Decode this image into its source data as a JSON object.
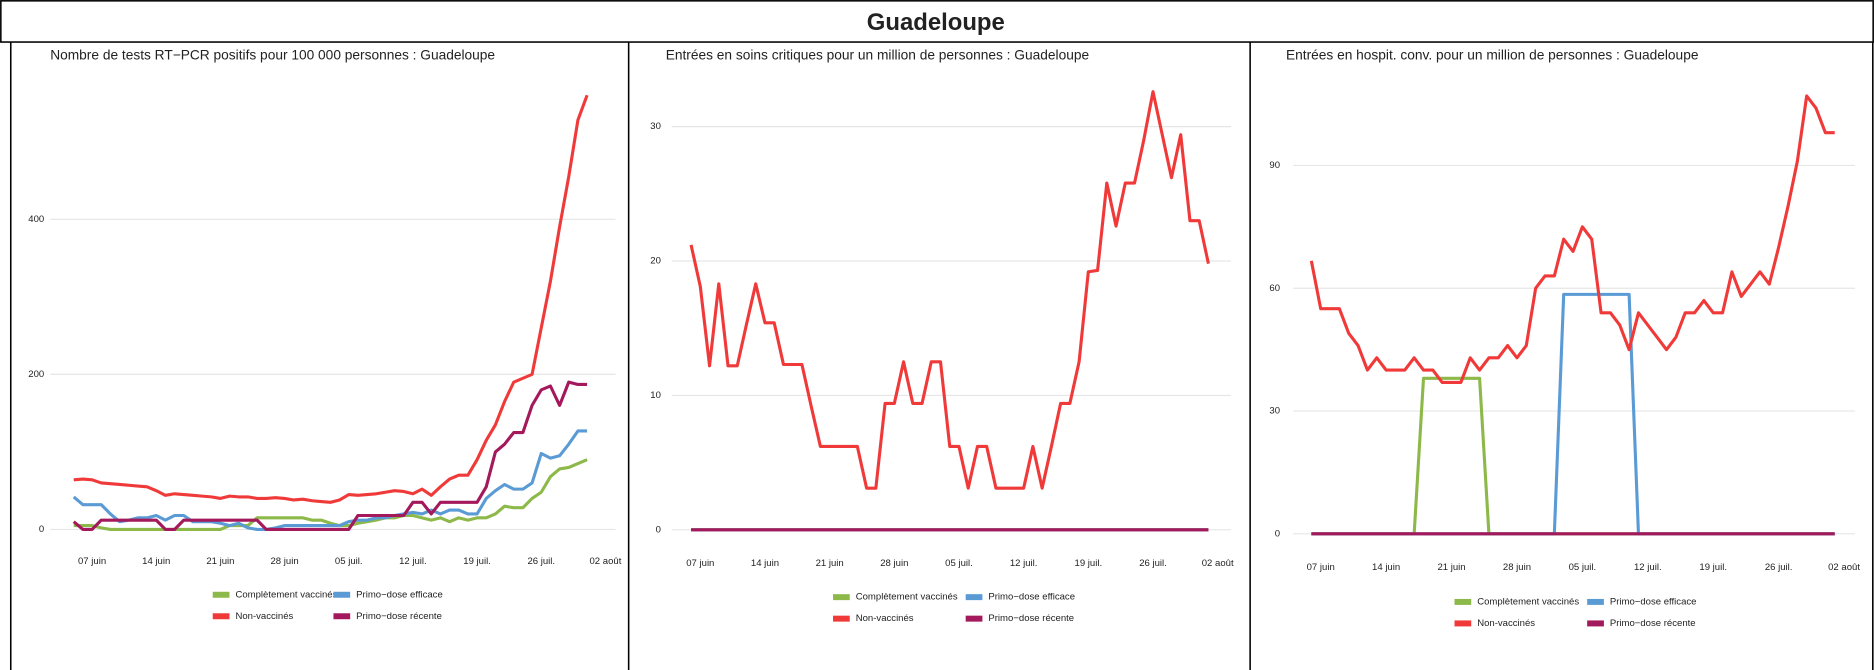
{
  "header": {
    "title": "Guadeloupe"
  },
  "chart_data": [
    {
      "type": "line",
      "title": "Nombre de tests RT−PCR positifs pour 100 000 personnes : Guadeloupe",
      "categories": [
        null,
        null,
        "07 juin",
        null,
        null,
        null,
        null,
        null,
        null,
        "14 juin",
        null,
        null,
        null,
        null,
        null,
        null,
        "21 juin",
        null,
        null,
        null,
        null,
        null,
        null,
        "28 juin",
        null,
        null,
        null,
        null,
        null,
        null,
        "05 juil.",
        null,
        null,
        null,
        null,
        null,
        null,
        "12 juil.",
        null,
        null,
        null,
        null,
        null,
        null,
        "19 juil.",
        null,
        null,
        null,
        null,
        null,
        null,
        "26 juil.",
        null,
        null,
        null,
        null,
        null,
        null,
        "02 août"
      ],
      "series": [
        {
          "name": "Complètement vaccinés",
          "color": "#8db84a",
          "values": [
            5,
            5,
            5,
            2,
            0,
            0,
            0,
            0,
            0,
            0,
            0,
            0,
            0,
            0,
            0,
            0,
            0,
            5,
            5,
            5,
            15,
            15,
            15,
            15,
            15,
            15,
            12,
            12,
            8,
            5,
            5,
            8,
            10,
            12,
            15,
            15,
            18,
            18,
            15,
            12,
            15,
            10,
            15,
            12,
            15,
            15,
            20,
            30,
            28,
            28,
            40,
            48,
            68,
            78,
            80,
            85,
            90,
            null,
            null
          ]
        },
        {
          "name": "Primo−dose efficace",
          "color": "#5b9bd5",
          "values": [
            42,
            32,
            32,
            32,
            20,
            10,
            12,
            15,
            15,
            18,
            12,
            18,
            18,
            10,
            10,
            10,
            8,
            5,
            8,
            2,
            0,
            0,
            2,
            5,
            5,
            5,
            5,
            5,
            5,
            5,
            10,
            12,
            12,
            15,
            15,
            18,
            20,
            22,
            20,
            25,
            20,
            25,
            25,
            20,
            20,
            40,
            50,
            58,
            52,
            52,
            60,
            98,
            92,
            95,
            110,
            127,
            127,
            null,
            null
          ]
        },
        {
          "name": "Non-vaccinés",
          "color": "#f03a3a",
          "values": [
            64,
            65,
            64,
            60,
            59,
            58,
            57,
            56,
            55,
            50,
            44,
            46,
            45,
            44,
            43,
            42,
            40,
            43,
            42,
            42,
            40,
            40,
            41,
            40,
            38,
            39,
            37,
            36,
            35,
            38,
            45,
            44,
            45,
            46,
            48,
            50,
            49,
            46,
            52,
            44,
            55,
            65,
            70,
            70,
            90,
            115,
            135,
            165,
            190,
            195,
            200,
            260,
            320,
            390,
            455,
            528,
            560,
            null,
            null
          ]
        },
        {
          "name": "Primo−dose récente",
          "color": "#a3195b",
          "values": [
            10,
            0,
            0,
            12,
            12,
            12,
            12,
            12,
            12,
            12,
            0,
            0,
            12,
            12,
            12,
            12,
            12,
            12,
            12,
            12,
            12,
            0,
            0,
            0,
            0,
            0,
            0,
            0,
            0,
            0,
            0,
            18,
            18,
            18,
            18,
            18,
            18,
            35,
            35,
            20,
            35,
            35,
            35,
            35,
            35,
            55,
            100,
            110,
            125,
            125,
            160,
            180,
            185,
            160,
            190,
            187,
            187,
            null,
            null
          ]
        }
      ],
      "ylim": [
        -18,
        575
      ],
      "yticks": [
        0,
        200,
        400
      ],
      "grid": true,
      "legend": "bottom"
    },
    {
      "type": "line",
      "title": "Entrées en soins critiques pour un million de personnes : Guadeloupe",
      "categories": [
        null,
        null,
        "07 juin",
        null,
        null,
        null,
        null,
        null,
        null,
        "14 juin",
        null,
        null,
        null,
        null,
        null,
        null,
        "21 juin",
        null,
        null,
        null,
        null,
        null,
        null,
        "28 juin",
        null,
        null,
        null,
        null,
        null,
        null,
        "05 juil.",
        null,
        null,
        null,
        null,
        null,
        null,
        "12 juil.",
        null,
        null,
        null,
        null,
        null,
        null,
        "19 juil.",
        null,
        null,
        null,
        null,
        null,
        null,
        "26 juil.",
        null,
        null,
        null,
        null,
        null,
        null,
        "02 août"
      ],
      "series": [
        {
          "name": "Complètement vaccinés",
          "color": "#8db84a",
          "values": [
            null,
            0,
            0,
            0,
            0,
            0,
            0,
            0,
            0,
            0,
            0,
            0,
            0,
            0,
            0,
            0,
            0,
            0,
            0,
            0,
            0,
            0,
            0,
            0,
            0,
            0,
            0,
            0,
            0,
            0,
            0,
            0,
            0,
            0,
            0,
            0,
            0,
            0,
            0,
            0,
            0,
            0,
            0,
            0,
            0,
            0,
            0,
            0,
            0,
            0,
            0,
            0,
            0,
            0,
            0,
            0,
            0,
            0,
            null
          ]
        },
        {
          "name": "Primo−dose efficace",
          "color": "#5b9bd5",
          "values": [
            null,
            0,
            0,
            0,
            0,
            0,
            0,
            0,
            0,
            0,
            0,
            0,
            0,
            0,
            0,
            0,
            0,
            0,
            0,
            0,
            0,
            0,
            0,
            0,
            0,
            0,
            0,
            0,
            0,
            0,
            0,
            0,
            0,
            0,
            0,
            0,
            0,
            0,
            0,
            0,
            0,
            0,
            0,
            0,
            0,
            0,
            0,
            0,
            0,
            0,
            0,
            0,
            0,
            0,
            0,
            0,
            0,
            0,
            null
          ]
        },
        {
          "name": "Non-vaccinés",
          "color": "#f03a3a",
          "values": [
            null,
            21.2,
            18.1,
            12.2,
            18.3,
            12.2,
            12.2,
            15.3,
            18.3,
            15.4,
            15.4,
            12.3,
            12.3,
            12.3,
            9.2,
            6.2,
            6.2,
            6.2,
            6.2,
            6.2,
            3.1,
            3.1,
            9.4,
            9.4,
            12.5,
            9.4,
            9.4,
            12.5,
            12.5,
            6.2,
            6.2,
            3.1,
            6.2,
            6.2,
            3.1,
            3.1,
            3.1,
            3.1,
            6.2,
            3.1,
            6.2,
            9.4,
            9.4,
            12.5,
            19.2,
            19.3,
            25.8,
            22.6,
            25.8,
            25.8,
            29,
            32.6,
            29.4,
            26.2,
            29.4,
            23,
            23,
            19.8,
            null
          ]
        },
        {
          "name": "Primo−dose récente",
          "color": "#a3195b",
          "values": [
            null,
            0,
            0,
            0,
            0,
            0,
            0,
            0,
            0,
            0,
            0,
            0,
            0,
            0,
            0,
            0,
            0,
            0,
            0,
            0,
            0,
            0,
            0,
            0,
            0,
            0,
            0,
            0,
            0,
            0,
            0,
            0,
            0,
            0,
            0,
            0,
            0,
            0,
            0,
            0,
            0,
            0,
            0,
            0,
            0,
            0,
            0,
            0,
            0,
            0,
            0,
            0,
            0,
            0,
            0,
            0,
            0,
            0,
            null
          ]
        }
      ],
      "ylim": [
        -1.1,
        33.2
      ],
      "yticks": [
        0,
        10,
        20,
        30
      ],
      "grid": true,
      "legend": "bottom"
    },
    {
      "type": "line",
      "title": "Entrées en hospit. conv. pour un million de personnes : Guadeloupe",
      "categories": [
        null,
        null,
        "07 juin",
        null,
        null,
        null,
        null,
        null,
        null,
        "14 juin",
        null,
        null,
        null,
        null,
        null,
        null,
        "21 juin",
        null,
        null,
        null,
        null,
        null,
        null,
        "28 juin",
        null,
        null,
        null,
        null,
        null,
        null,
        "05 juil.",
        null,
        null,
        null,
        null,
        null,
        null,
        "12 juil.",
        null,
        null,
        null,
        null,
        null,
        null,
        "19 juil.",
        null,
        null,
        null,
        null,
        null,
        null,
        "26 juil.",
        null,
        null,
        null,
        null,
        null,
        null,
        "02 août"
      ],
      "series": [
        {
          "name": "Complètement vaccinés",
          "color": "#8db84a",
          "values": [
            null,
            0,
            0,
            0,
            0,
            0,
            0,
            0,
            0,
            0,
            0,
            0,
            0,
            38,
            38,
            38,
            38,
            38,
            38,
            38,
            0,
            0,
            0,
            0,
            0,
            0,
            0,
            0,
            0,
            0,
            0,
            0,
            0,
            0,
            0,
            0,
            0,
            0,
            0,
            0,
            0,
            0,
            0,
            0,
            0,
            0,
            0,
            0,
            0,
            0,
            0,
            0,
            0,
            0,
            0,
            0,
            0,
            0,
            null
          ]
        },
        {
          "name": "Primo−dose efficace",
          "color": "#5b9bd5",
          "values": [
            null,
            0,
            0,
            0,
            0,
            0,
            0,
            0,
            0,
            0,
            0,
            0,
            0,
            0,
            0,
            0,
            0,
            0,
            0,
            0,
            0,
            0,
            0,
            0,
            0,
            0,
            0,
            0,
            58.5,
            58.5,
            58.5,
            58.5,
            58.5,
            58.5,
            58.5,
            58.5,
            0,
            0,
            0,
            0,
            0,
            0,
            0,
            0,
            0,
            0,
            0,
            0,
            0,
            0,
            0,
            0,
            0,
            0,
            0,
            0,
            0,
            0,
            null
          ]
        },
        {
          "name": "Non-vaccinés",
          "color": "#f03a3a",
          "values": [
            null,
            66.7,
            55,
            55,
            55,
            49,
            46,
            40,
            43,
            40,
            40,
            40,
            43,
            40,
            40,
            37,
            37,
            37,
            43,
            40,
            43,
            43,
            46,
            43,
            46,
            60,
            63,
            63,
            72,
            69,
            75,
            72,
            54,
            54,
            51,
            45,
            54,
            51,
            48,
            45,
            48,
            54,
            54,
            57,
            54,
            54,
            64,
            58,
            61,
            64,
            61,
            70,
            80,
            91,
            107,
            104,
            98,
            98,
            null
          ]
        },
        {
          "name": "Primo−dose récente",
          "color": "#a3195b",
          "values": [
            null,
            0,
            0,
            0,
            0,
            0,
            0,
            0,
            0,
            0,
            0,
            0,
            0,
            0,
            0,
            0,
            0,
            0,
            0,
            0,
            0,
            0,
            0,
            0,
            0,
            0,
            0,
            0,
            0,
            0,
            0,
            0,
            0,
            0,
            0,
            0,
            0,
            0,
            0,
            0,
            0,
            0,
            0,
            0,
            0,
            0,
            0,
            0,
            0,
            0,
            0,
            0,
            0,
            0,
            0,
            0,
            0,
            0,
            null
          ]
        }
      ],
      "ylim": [
        -3.8,
        110
      ],
      "yticks": [
        0,
        30,
        60,
        90
      ],
      "grid": true,
      "legend": "bottom"
    }
  ]
}
